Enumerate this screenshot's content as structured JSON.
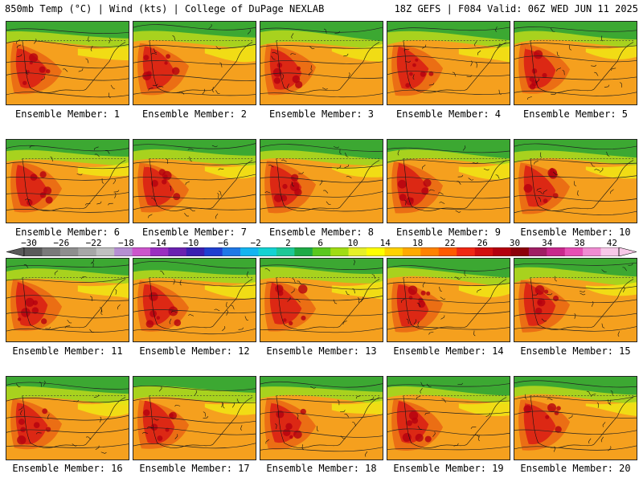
{
  "header": {
    "left": "850mb Temp (°C) | Wind (kts) | College of DuPage NEXLAB",
    "right": "18Z GEFS | F084 Valid: 06Z WED JUN 11 2025"
  },
  "members": [
    "Ensemble Member: 1",
    "Ensemble Member: 2",
    "Ensemble Member: 3",
    "Ensemble Member: 4",
    "Ensemble Member: 5",
    "Ensemble Member: 6",
    "Ensemble Member: 7",
    "Ensemble Member: 8",
    "Ensemble Member: 9",
    "Ensemble Member: 10",
    "Ensemble Member: 11",
    "Ensemble Member: 12",
    "Ensemble Member: 13",
    "Ensemble Member: 14",
    "Ensemble Member: 15",
    "Ensemble Member: 16",
    "Ensemble Member: 17",
    "Ensemble Member: 18",
    "Ensemble Member: 19",
    "Ensemble Member: 20"
  ],
  "colorbar": {
    "tick_labels": [
      "−30",
      "−26",
      "−22",
      "−18",
      "−14",
      "−10",
      "−6",
      "−2",
      "2",
      "6",
      "10",
      "14",
      "18",
      "22",
      "26",
      "30",
      "34",
      "38",
      "42"
    ],
    "colors": [
      "#5a5a5a",
      "#7a7a7a",
      "#8e8e8e",
      "#a7a7a7",
      "#c0c0c0",
      "#b58fd2",
      "#cc55cc",
      "#9a2fc0",
      "#6a21b0",
      "#3a1fb0",
      "#1f3fd0",
      "#1f78e6",
      "#14b4f0",
      "#14d2d2",
      "#1ec896",
      "#1eaa46",
      "#5ac81e",
      "#a0dc14",
      "#e6f028",
      "#ffff00",
      "#ffd200",
      "#ffaa00",
      "#ff8200",
      "#ff5a00",
      "#f02814",
      "#d20f0f",
      "#b4000f",
      "#8c000a",
      "#a01e64",
      "#c8288c",
      "#e650b4",
      "#f08cd2",
      "#f8c8e8"
    ]
  },
  "map_colors": {
    "north_green": "#3ca832",
    "yellow_green": "#a8d21e",
    "yellow": "#f0e614",
    "orange": "#f5a01e",
    "dark_orange": "#eb6e14",
    "red": "#dc2814",
    "cyan": "#28d2c8",
    "contour": "#222222"
  }
}
